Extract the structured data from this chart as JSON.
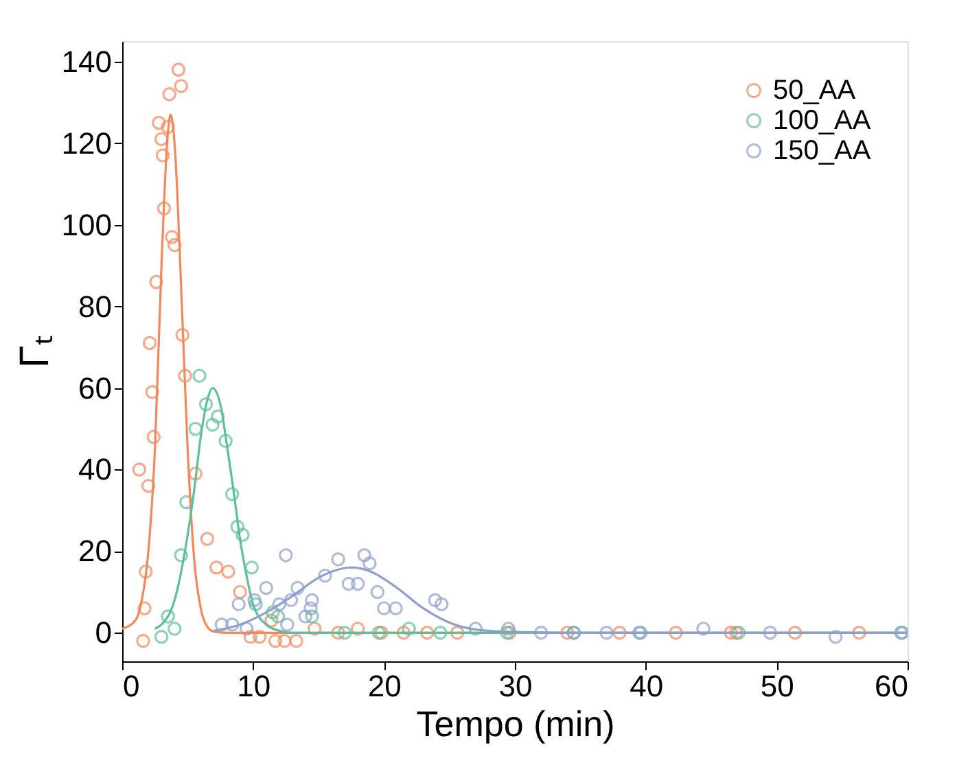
{
  "chart_data": {
    "type": "scatter",
    "xlabel": "Tempo (min)",
    "ylabel": "Γₜ",
    "xlim": [
      0,
      60
    ],
    "xticks": [
      0,
      10,
      20,
      30,
      40,
      50,
      60
    ],
    "ylim": [
      -7,
      145
    ],
    "yticks": [
      0,
      20,
      40,
      60,
      80,
      100,
      120,
      140
    ],
    "grid": false,
    "legend": "top right",
    "marker": "circle",
    "series": [
      {
        "name": "50_AA",
        "color": "#f4875a",
        "x": [
          1.3,
          1.6,
          1.7,
          1.8,
          2.1,
          2.0,
          2.3,
          2.4,
          2.6,
          2.8,
          3.0,
          3.1,
          3.2,
          3.5,
          3.6,
          3.8,
          4.0,
          4.3,
          4.5,
          4.6,
          4.8,
          5.6,
          6.5,
          7.2,
          8.1,
          9.0,
          9.8,
          10.5,
          11.4,
          11.7,
          12.4,
          13.3,
          14.7,
          16.5,
          18.0,
          19.8,
          21.5,
          23.3,
          25.6,
          29.6,
          34.0,
          38.0,
          42.3,
          46.5,
          46.9,
          51.4,
          56.3
        ],
        "values": [
          40,
          -2,
          6,
          15,
          71,
          36,
          59,
          48,
          86,
          125,
          121,
          117,
          104,
          124,
          132,
          97,
          95,
          138,
          134,
          73,
          63,
          39,
          23,
          16,
          15,
          10,
          -1,
          -1,
          3,
          -2,
          -2,
          -2,
          1,
          0,
          1,
          0,
          0,
          0,
          0,
          0,
          0,
          0,
          0,
          0,
          0,
          0,
          0
        ]
      },
      {
        "name": "100_AA",
        "color": "#5dbf9a",
        "x": [
          3.0,
          3.5,
          4.0,
          4.5,
          4.9,
          5.6,
          5.9,
          6.4,
          6.9,
          7.3,
          7.9,
          8.4,
          8.8,
          9.2,
          9.9,
          10.2,
          11.5,
          11.9,
          14.5,
          17.0,
          19.6,
          21.9,
          24.3,
          29.4,
          34.5,
          39.6,
          47.1,
          59.6
        ],
        "values": [
          -1,
          4,
          1,
          19,
          32,
          50,
          63,
          56,
          51,
          53,
          47,
          34,
          26,
          24,
          16,
          7,
          5,
          4,
          4,
          0,
          0,
          1,
          0,
          0,
          0,
          0,
          0,
          0
        ]
      },
      {
        "name": "150_AA",
        "color": "#8c9fcf",
        "x": [
          7.6,
          8.4,
          8.9,
          9.5,
          10.1,
          11.0,
          12.0,
          12.5,
          12.6,
          12.9,
          13.4,
          14.0,
          14.4,
          14.5,
          15.5,
          16.5,
          17.3,
          18.0,
          18.5,
          18.9,
          19.5,
          20.0,
          20.9,
          23.9,
          24.4,
          27.0,
          29.5,
          32.0,
          34.5,
          37.0,
          39.5,
          44.4,
          49.5,
          54.5,
          59.5
        ],
        "values": [
          2,
          2,
          7,
          1,
          8,
          11,
          7,
          19,
          2,
          8,
          11,
          4,
          6,
          8,
          14,
          18,
          12,
          12,
          19,
          17,
          10,
          6,
          6,
          8,
          7,
          1,
          1,
          0,
          0,
          0,
          0,
          1,
          0,
          -1,
          0
        ]
      },
      {
        "type": "line",
        "marker": "none",
        "color": "#f4875a",
        "x": [
          0,
          1,
          1.5,
          2,
          2.5,
          3,
          3.5,
          3.7,
          4,
          4.5,
          5,
          5.5,
          6,
          6.5,
          7,
          8,
          60
        ],
        "values": [
          1,
          3,
          8,
          20,
          45,
          90,
          123,
          127,
          120,
          85,
          45,
          18,
          6,
          1.5,
          0.3,
          0,
          0
        ]
      },
      {
        "type": "line",
        "marker": "none",
        "color": "#5dbf9a",
        "x": [
          2.5,
          3,
          4,
          5,
          5.5,
          6,
          6.5,
          6.9,
          7.5,
          8,
          8.5,
          9,
          9.5,
          10,
          11,
          12,
          13,
          60
        ],
        "values": [
          1,
          2,
          8,
          24,
          35,
          48,
          57,
          60,
          56,
          46,
          35,
          23,
          14,
          7,
          2,
          0.5,
          0,
          0
        ]
      },
      {
        "type": "line",
        "marker": "none",
        "color": "#8c9fcf",
        "x": [
          7,
          9,
          11,
          13,
          15,
          17.5,
          19,
          21,
          23,
          25,
          27,
          30,
          35,
          60
        ],
        "values": [
          0.5,
          2,
          5,
          9,
          13.5,
          16,
          15,
          11,
          6,
          2.5,
          0.8,
          0.2,
          0,
          0
        ]
      }
    ]
  }
}
